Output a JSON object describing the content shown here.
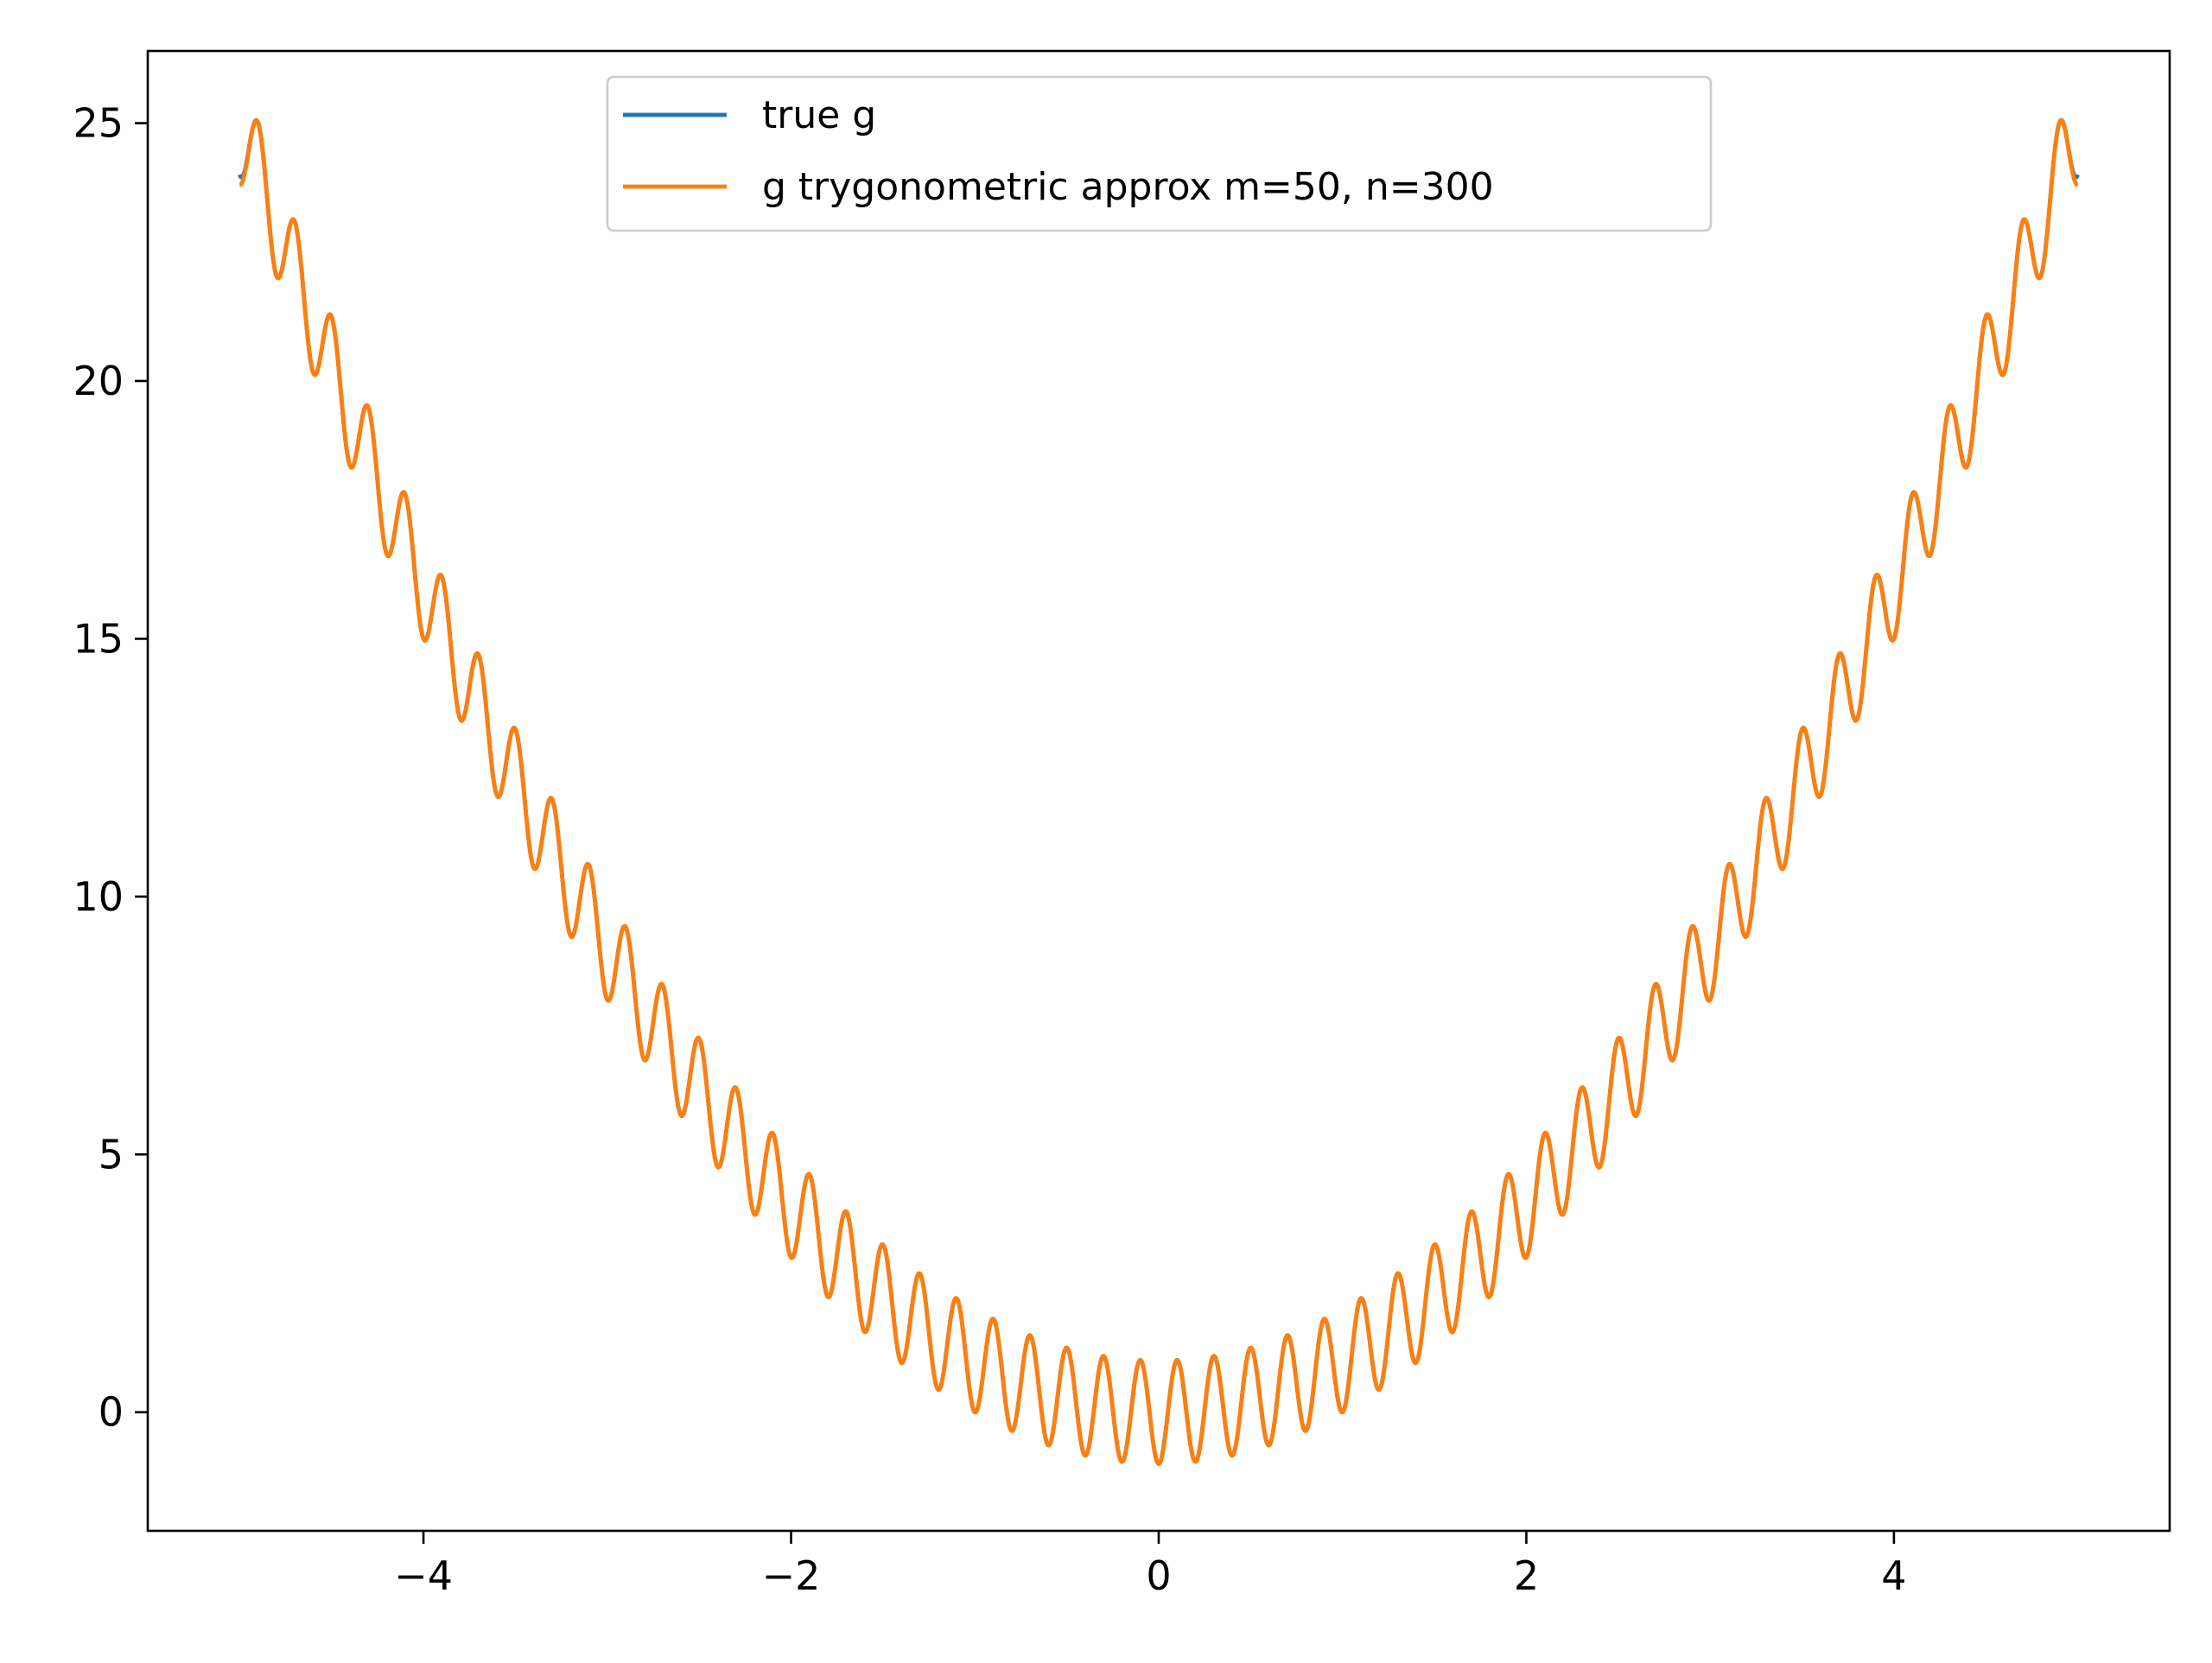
{
  "chart_data": {
    "type": "line",
    "title": "",
    "xlabel": "",
    "ylabel": "",
    "xlim": [
      -5.5,
      5.5
    ],
    "ylim": [
      -2.3,
      26.4
    ],
    "x_ticks": [
      -4,
      -2,
      0,
      2,
      4
    ],
    "x_tick_labels": [
      "−4",
      "−2",
      "0",
      "2",
      "4"
    ],
    "y_ticks": [
      0,
      5,
      10,
      15,
      20,
      25
    ],
    "y_tick_labels": [
      "0",
      "5",
      "10",
      "15",
      "20",
      "25"
    ],
    "grid": false,
    "legend_position": "upper-center",
    "x_range": [
      -5,
      5
    ],
    "series": [
      {
        "name": "true g",
        "color": "#1f77b4",
        "formula": "x^2 - cos(10*pi*x)",
        "sample_x": [
          -5,
          -4,
          -3,
          -2,
          -1,
          0,
          1,
          2,
          3,
          4,
          5
        ],
        "sample_y": [
          24,
          15,
          8,
          3,
          0,
          -1,
          0,
          3,
          8,
          15,
          24
        ]
      },
      {
        "name": "g trygonometric approx m=50, n=300",
        "color": "#ff7f0e",
        "approximates": "true g",
        "sample_x": [
          -5,
          -4.9,
          -4,
          -3,
          -2,
          -1,
          0,
          1,
          2,
          3,
          4,
          4.9,
          5
        ],
        "sample_y": [
          23.8,
          25.0,
          15.0,
          8.0,
          3.0,
          0.0,
          -1.0,
          0.0,
          3.0,
          8.0,
          15.0,
          25.0,
          23.8
        ]
      }
    ]
  }
}
